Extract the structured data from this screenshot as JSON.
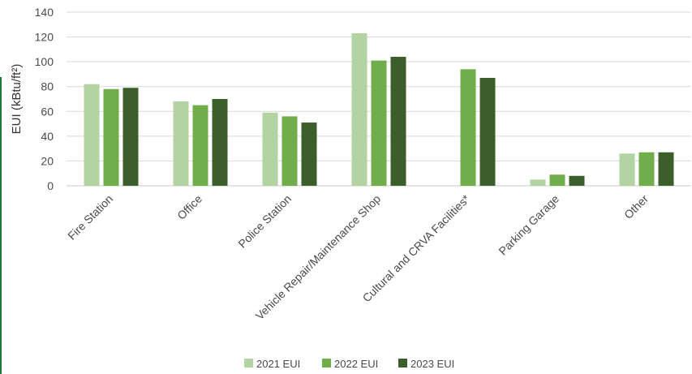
{
  "chart_data": {
    "type": "bar",
    "ylabel": "EUI (kBtu/ft²)",
    "ylim": [
      0,
      140
    ],
    "yticks": [
      0,
      20,
      40,
      60,
      80,
      100,
      120,
      140
    ],
    "grid": true,
    "legend_position": "bottom",
    "categories": [
      "Fire Station",
      "Office",
      "Police Station",
      "Vehicle Repair/Maintenance Shop",
      "Cultural and CRVA Facilities*",
      "Parking Garage",
      "Other"
    ],
    "series": [
      {
        "name": "2021 EUI",
        "color": "#b3d3a2",
        "values": [
          82,
          68,
          59,
          123,
          null,
          5,
          26
        ]
      },
      {
        "name": "2022 EUI",
        "color": "#72ad4c",
        "values": [
          78,
          65,
          56,
          101,
          94,
          9,
          27
        ]
      },
      {
        "name": "2023 EUI",
        "color": "#3b5e2b",
        "values": [
          79,
          70,
          51,
          104,
          87,
          8,
          27
        ]
      }
    ]
  }
}
